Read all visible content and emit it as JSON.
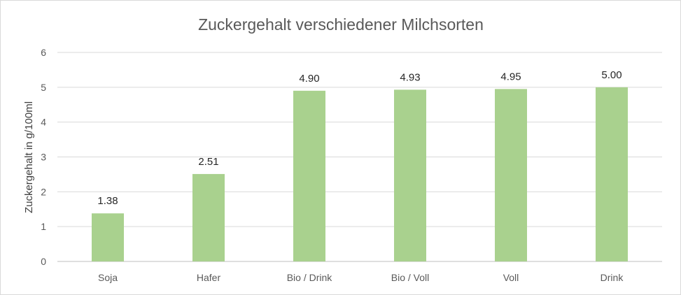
{
  "chart_data": {
    "type": "bar",
    "title": "Zuckergehalt verschiedener Milchsorten",
    "xlabel": "",
    "ylabel": "Zuckergehalt in g/100ml",
    "categories": [
      "Soja",
      "Hafer",
      "Bio / Drink",
      "Bio / Voll",
      "Voll",
      "Drink"
    ],
    "values": [
      1.38,
      2.51,
      4.9,
      4.93,
      4.95,
      5.0
    ],
    "value_labels": [
      "1.38",
      "2.51",
      "4.90",
      "4.93",
      "4.95",
      "5.00"
    ],
    "ylim": [
      0,
      6
    ],
    "yticks": [
      0,
      1,
      2,
      3,
      4,
      5,
      6
    ],
    "grid": true,
    "legend": "none",
    "bar_color": "#a9d18e"
  }
}
